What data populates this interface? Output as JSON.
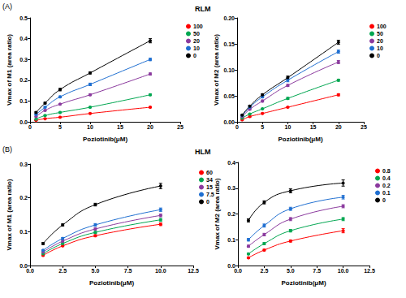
{
  "panels": [
    {
      "label": "(A)",
      "title": "RLM"
    },
    {
      "label": "(B)",
      "title": "HLM"
    }
  ],
  "chart_data": [
    {
      "type": "line",
      "marker": "circle",
      "legend": "right",
      "grid": false,
      "xlabel": "Poziotinib(μM)",
      "ylabel": "Vmax of M1 (area ratio)",
      "x": [
        1,
        2.5,
        5,
        10,
        20
      ],
      "xlim": [
        0,
        25
      ],
      "xticks": [
        0,
        5,
        10,
        15,
        20,
        25
      ],
      "ylim": [
        0,
        0.5
      ],
      "yticks": [
        {
          "value": 0,
          "label": "0.0"
        },
        0.1,
        0.2,
        0.3,
        0.4,
        0.5
      ],
      "series": [
        {
          "name": "100",
          "color": "#ff0000",
          "values": [
            0.007,
            0.015,
            0.022,
            0.04,
            0.07
          ],
          "errors": [
            0.001,
            0.001,
            0.002,
            0.002,
            0.003
          ]
        },
        {
          "name": "50",
          "color": "#00a650",
          "values": [
            0.013,
            0.03,
            0.045,
            0.07,
            0.13
          ],
          "errors": [
            0.001,
            0.002,
            0.002,
            0.003,
            0.004
          ]
        },
        {
          "name": "20",
          "color": "#8b3a9e",
          "values": [
            0.025,
            0.055,
            0.085,
            0.13,
            0.23
          ],
          "errors": [
            0.002,
            0.003,
            0.003,
            0.004,
            0.005
          ]
        },
        {
          "name": "10",
          "color": "#1f6fd1",
          "values": [
            0.035,
            0.07,
            0.12,
            0.18,
            0.3
          ],
          "errors": [
            0.002,
            0.003,
            0.004,
            0.006,
            0.006
          ]
        },
        {
          "name": "0",
          "color": "#000000",
          "values": [
            0.045,
            0.09,
            0.155,
            0.235,
            0.39
          ],
          "errors": [
            0.003,
            0.004,
            0.006,
            0.005,
            0.01
          ]
        }
      ]
    },
    {
      "type": "line",
      "marker": "circle",
      "legend": "right",
      "grid": false,
      "xlabel": "Poziotinib(μM)",
      "ylabel": "Vmax of M2 (area ratio)",
      "x": [
        1,
        2.5,
        5,
        10,
        20
      ],
      "xlim": [
        0,
        25
      ],
      "xticks": [
        0,
        5,
        10,
        15,
        20,
        25
      ],
      "ylim": [
        0,
        0.2
      ],
      "yticks": [
        {
          "value": 0,
          "label": "0.00"
        },
        0.05,
        {
          "value": 0.1,
          "label": "0.10"
        },
        0.15,
        {
          "value": 0.2,
          "label": "0.20"
        }
      ],
      "series": [
        {
          "name": "100",
          "color": "#ff0000",
          "values": [
            0.004,
            0.01,
            0.016,
            0.028,
            0.052
          ],
          "errors": [
            0.001,
            0.001,
            0.001,
            0.001,
            0.002
          ]
        },
        {
          "name": "50",
          "color": "#00a650",
          "values": [
            0.007,
            0.015,
            0.025,
            0.045,
            0.08
          ],
          "errors": [
            0.001,
            0.001,
            0.001,
            0.002,
            0.002
          ]
        },
        {
          "name": "20",
          "color": "#8b3a9e",
          "values": [
            0.01,
            0.024,
            0.04,
            0.07,
            0.115
          ],
          "errors": [
            0.001,
            0.001,
            0.002,
            0.002,
            0.003
          ]
        },
        {
          "name": "10",
          "color": "#1f6fd1",
          "values": [
            0.012,
            0.028,
            0.048,
            0.08,
            0.135
          ],
          "errors": [
            0.001,
            0.002,
            0.002,
            0.003,
            0.003
          ]
        },
        {
          "name": "0",
          "color": "#000000",
          "values": [
            0.013,
            0.03,
            0.052,
            0.085,
            0.153
          ],
          "errors": [
            0.001,
            0.002,
            0.002,
            0.003,
            0.004
          ]
        }
      ]
    },
    {
      "type": "line",
      "marker": "circle",
      "legend": "right",
      "grid": false,
      "xlabel": "Poziotinib(μM)",
      "ylabel": "Vmax of M1 (area ratio)",
      "x": [
        1,
        2.5,
        5,
        10
      ],
      "xlim": [
        0,
        12.5
      ],
      "xticks": [
        {
          "value": 0,
          "label": "0.0"
        },
        2.5,
        {
          "value": 5,
          "label": "5.0"
        },
        7.5,
        {
          "value": 10,
          "label": "10.0"
        },
        12.5
      ],
      "ylim": [
        0,
        0.3
      ],
      "yticks": [
        {
          "value": 0,
          "label": "0.0"
        },
        0.1,
        0.2,
        0.3
      ],
      "series": [
        {
          "name": "60",
          "color": "#ff0000",
          "values": [
            0.03,
            0.058,
            0.088,
            0.122
          ],
          "errors": [
            0.002,
            0.002,
            0.003,
            0.004
          ]
        },
        {
          "name": "34",
          "color": "#00a650",
          "values": [
            0.035,
            0.065,
            0.098,
            0.135
          ],
          "errors": [
            0.002,
            0.002,
            0.003,
            0.004
          ]
        },
        {
          "name": "15",
          "color": "#8b3a9e",
          "values": [
            0.04,
            0.072,
            0.108,
            0.148
          ],
          "errors": [
            0.002,
            0.003,
            0.003,
            0.004
          ]
        },
        {
          "name": "7.5",
          "color": "#1f6fd1",
          "values": [
            0.045,
            0.08,
            0.12,
            0.165
          ],
          "errors": [
            0.002,
            0.003,
            0.004,
            0.005
          ]
        },
        {
          "name": "0",
          "color": "#000000",
          "values": [
            0.065,
            0.12,
            0.18,
            0.235
          ],
          "errors": [
            0.003,
            0.003,
            0.004,
            0.008
          ]
        }
      ]
    },
    {
      "type": "line",
      "marker": "circle",
      "legend": "right",
      "grid": false,
      "xlabel": "Poziotinib(μM)",
      "ylabel": "Vmax of M2 (area ratio)",
      "x": [
        1,
        2.5,
        5,
        10
      ],
      "xlim": [
        0,
        12.5
      ],
      "xticks": [
        {
          "value": 0,
          "label": "0.0"
        },
        2.5,
        {
          "value": 5,
          "label": "5.0"
        },
        7.5,
        {
          "value": 10,
          "label": "10.0"
        },
        12.5
      ],
      "ylim": [
        0,
        0.4
      ],
      "yticks": [
        {
          "value": 0,
          "label": "0.0"
        },
        0.1,
        0.2,
        0.3,
        0.4
      ],
      "series": [
        {
          "name": "0.8",
          "color": "#ff0000",
          "values": [
            0.03,
            0.06,
            0.095,
            0.135
          ],
          "errors": [
            0.003,
            0.003,
            0.004,
            0.008
          ]
        },
        {
          "name": "0.4",
          "color": "#00a650",
          "values": [
            0.045,
            0.085,
            0.135,
            0.18
          ],
          "errors": [
            0.003,
            0.004,
            0.005,
            0.006
          ]
        },
        {
          "name": "0.2",
          "color": "#8b3a9e",
          "values": [
            0.075,
            0.12,
            0.18,
            0.23
          ],
          "errors": [
            0.004,
            0.005,
            0.006,
            0.006
          ]
        },
        {
          "name": "0.1",
          "color": "#1f6fd1",
          "values": [
            0.1,
            0.155,
            0.22,
            0.265
          ],
          "errors": [
            0.005,
            0.006,
            0.006,
            0.007
          ]
        },
        {
          "name": "0",
          "color": "#000000",
          "values": [
            0.175,
            0.245,
            0.29,
            0.32
          ],
          "errors": [
            0.006,
            0.006,
            0.008,
            0.012
          ]
        }
      ]
    }
  ]
}
